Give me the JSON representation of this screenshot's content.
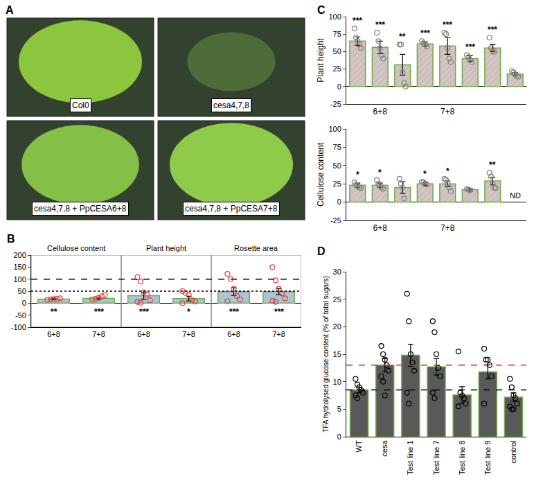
{
  "photo": {
    "panel": "A",
    "labels": [
      "Col0",
      "cesa4,7,8",
      "cesa4,7,8 + PpCESA6+8",
      "cesa4,7,8 + PpCESA7+8"
    ]
  },
  "chart_data": [
    {
      "type": "bar",
      "panel": "B",
      "groups": [
        "Cellulose content",
        "Plant height",
        "Rosette area"
      ],
      "categories": [
        "6+8",
        "7+8",
        "6+8",
        "7+8",
        "6+8",
        "7+8"
      ],
      "values": [
        17,
        20,
        31,
        19,
        48,
        48
      ],
      "errors": [
        3,
        4,
        15,
        10,
        16,
        13
      ],
      "significance": [
        "**",
        "***",
        "***",
        "*",
        "***",
        "***"
      ],
      "points": {
        "color": "#e0403a",
        "marker": "circle-open",
        "values": [
          [
            14,
            16,
            17,
            18,
            20
          ],
          [
            15,
            18,
            22,
            28,
            33
          ],
          [
            108,
            90,
            45,
            35,
            12,
            5,
            2
          ],
          [
            50,
            42,
            35,
            12,
            6,
            0
          ],
          [
            122,
            100,
            60,
            30,
            15,
            8
          ],
          [
            150,
            95,
            60,
            40,
            20,
            10,
            5
          ]
        ]
      },
      "color": "#aec3d8",
      "reference_lines": [
        {
          "value": 100,
          "line_style": "dash"
        },
        {
          "value": 50,
          "line_style": "dot"
        }
      ],
      "ylim": [
        -100,
        200
      ],
      "yticks": [
        -100,
        -50,
        0,
        50,
        100,
        150,
        200
      ],
      "grid": false
    },
    {
      "type": "bar",
      "panel": "C",
      "ylabel": "Plant height",
      "marker": "hatched",
      "categories": [
        null,
        "6+8",
        null,
        null,
        "7+8",
        null,
        null,
        null
      ],
      "values": [
        65,
        56,
        31,
        61,
        58,
        40,
        55,
        18
      ],
      "errors": [
        6,
        9,
        15,
        3,
        12,
        4,
        5,
        2
      ],
      "significance": [
        "***",
        "***",
        "**",
        "***",
        "***",
        "***",
        "***",
        null
      ],
      "points": {
        "color": "#808080",
        "marker": "circle-open",
        "values": [
          [
            83,
            70,
            65,
            60,
            55
          ],
          [
            77,
            65,
            55,
            45,
            40
          ],
          [
            60,
            60,
            20,
            5,
            0
          ],
          [
            65,
            62,
            60,
            57
          ],
          [
            77,
            75,
            55,
            40,
            35
          ],
          [
            45,
            42,
            38,
            35
          ],
          [
            70,
            55,
            50,
            50
          ],
          [
            22,
            20,
            17,
            15,
            14
          ]
        ]
      },
      "color": "#b9cde6",
      "ylim": [
        -25,
        100
      ],
      "yticks": [
        -25,
        0,
        25,
        50,
        75,
        100
      ],
      "grid": false
    },
    {
      "type": "bar",
      "ylabel": "Cellulose content",
      "marker": "hatched",
      "categories": [
        null,
        "6+8",
        null,
        null,
        "7+8",
        null,
        null,
        null
      ],
      "values": [
        23,
        23,
        20,
        25,
        25,
        17,
        29,
        null
      ],
      "value_labels": [
        null,
        null,
        null,
        null,
        null,
        null,
        null,
        "ND"
      ],
      "errors": [
        3,
        3,
        8,
        2,
        4,
        2,
        5,
        null
      ],
      "significance": [
        "*",
        "*",
        null,
        "*",
        "*",
        null,
        "**",
        null
      ],
      "points": {
        "color": "#808080",
        "marker": "circle-open",
        "values": [
          [
            27,
            24,
            22,
            20,
            19
          ],
          [
            30,
            25,
            22,
            20,
            18
          ],
          [
            32,
            25,
            20,
            5
          ],
          [
            28,
            27,
            25,
            24
          ],
          [
            32,
            30,
            25,
            20,
            15
          ],
          [
            18,
            17,
            16
          ],
          [
            40,
            35,
            25,
            20,
            19
          ],
          []
        ]
      },
      "color": "#b9cde6",
      "ylim": [
        -25,
        100
      ],
      "yticks": [
        -25,
        0,
        25,
        50,
        75,
        100
      ],
      "grid": false
    },
    {
      "type": "bar",
      "panel": "D",
      "ylabel": "TFA hydrolysed glucose content (% of total sugars)",
      "categories": [
        "WT",
        "cesa",
        "Test line 1",
        "Test line 7",
        "Test line 8",
        "Test line 9",
        "control"
      ],
      "values": [
        8.5,
        13,
        14.8,
        12.7,
        7.6,
        11.8,
        7.2
      ],
      "errors": [
        0.5,
        1.2,
        2,
        1.5,
        1.5,
        1.3,
        0.8
      ],
      "points": {
        "color": "#000000",
        "marker": "circle-open",
        "values": [
          [
            10.5,
            9.5,
            9,
            8.5,
            8,
            7.5,
            7
          ],
          [
            16.5,
            15,
            14,
            13,
            12,
            11,
            10,
            7.5
          ],
          [
            26,
            21,
            15,
            13.5,
            12,
            8,
            6
          ],
          [
            21,
            19,
            15,
            12.5,
            11,
            8,
            7
          ],
          [
            15.5,
            8,
            7.5,
            7,
            6,
            5.5
          ],
          [
            16,
            14,
            14,
            13,
            11,
            6
          ],
          [
            10.5,
            9,
            7.5,
            7,
            6,
            5.5,
            5,
            5
          ]
        ]
      },
      "color": "#595959",
      "reference_lines": [
        {
          "value": 13,
          "color": "#e02020",
          "line_style": "dash"
        },
        {
          "value": 8.5,
          "color": "#000000",
          "line_style": "dash"
        }
      ],
      "ylim": [
        0,
        30
      ],
      "yticks": [
        0,
        5,
        10,
        15,
        20,
        25,
        30
      ],
      "grid": false
    }
  ]
}
